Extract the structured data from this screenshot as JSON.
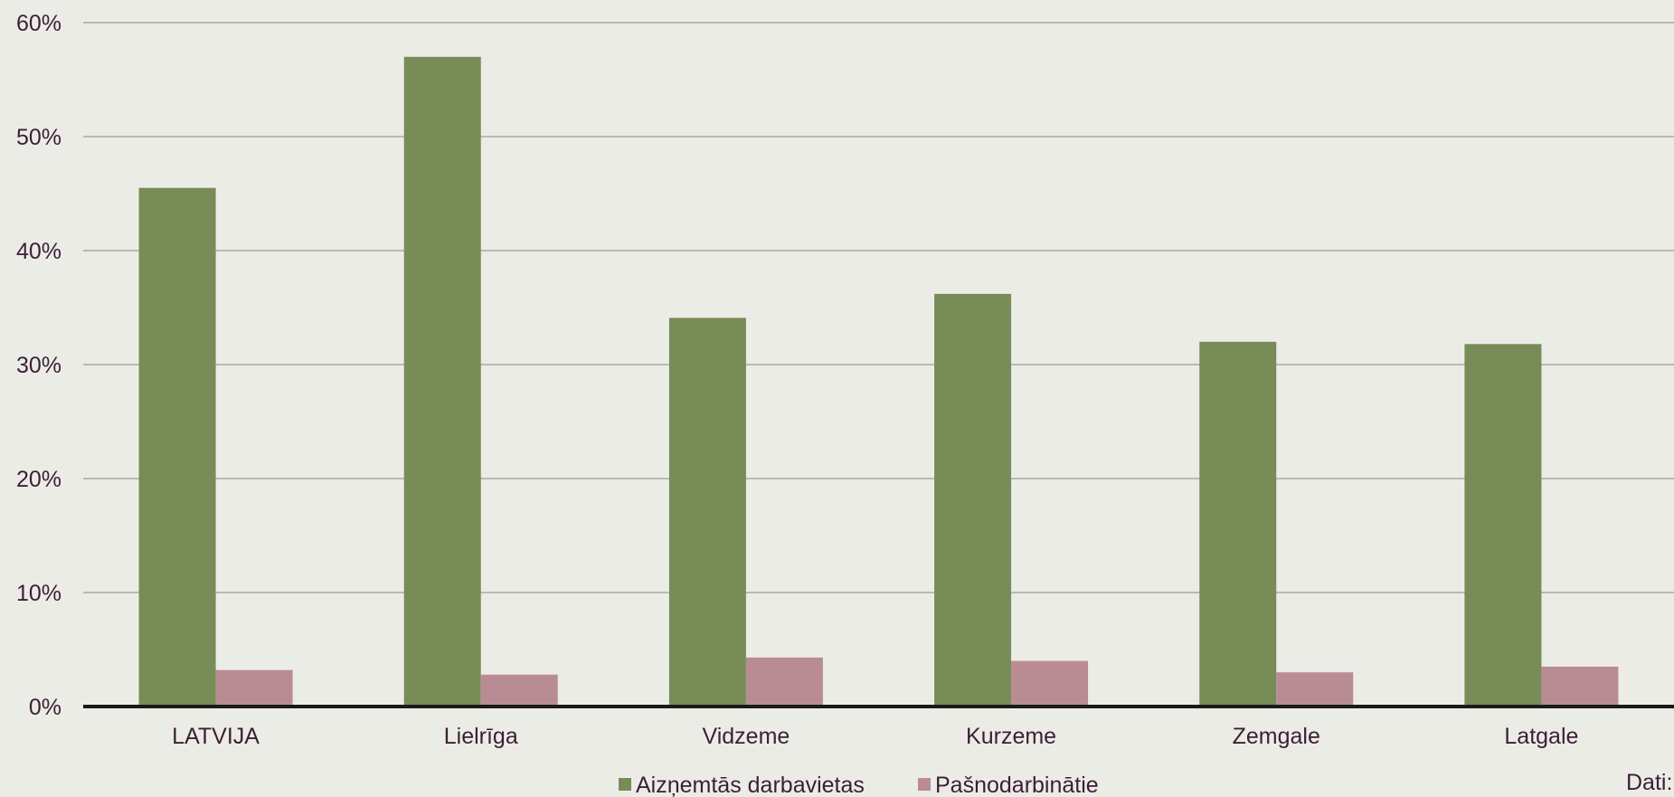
{
  "chart_data": {
    "type": "bar",
    "categories": [
      "LATVIJA",
      "Lielrīga",
      "Vidzeme",
      "Kurzeme",
      "Zemgale",
      "Latgale"
    ],
    "series": [
      {
        "name": "Aizņemtās darbavietas",
        "color": "#778c57",
        "values": [
          45.5,
          57.0,
          34.1,
          36.2,
          32.0,
          31.8
        ]
      },
      {
        "name": "Pašnodarbinātie",
        "color": "#b98c94",
        "values": [
          3.2,
          2.8,
          4.3,
          4.0,
          3.0,
          3.5
        ]
      }
    ],
    "yticks": [
      "0%",
      "10%",
      "20%",
      "30%",
      "40%",
      "50%",
      "60%"
    ],
    "ylim": [
      0,
      60
    ],
    "grid": true,
    "legend_position": "bottom-center",
    "colors": {
      "grid": "#a9aaa4",
      "axis": "#1a1a1a",
      "text": "#3b1f35",
      "background": "#ecece7"
    }
  },
  "source_note": "Dati:"
}
